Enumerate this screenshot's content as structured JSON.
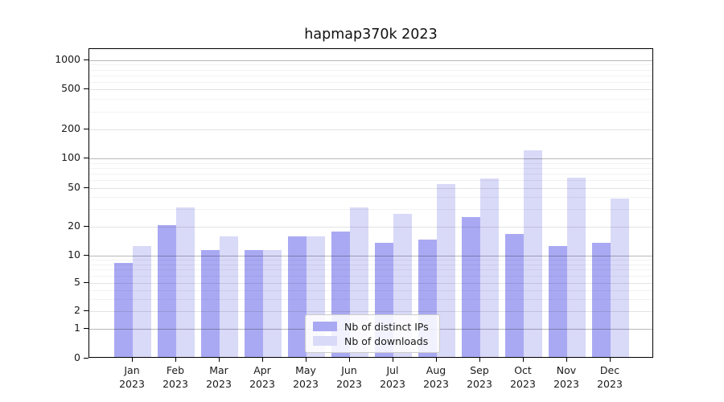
{
  "title": "hapmap370k 2023",
  "legend": {
    "items": [
      {
        "label": "Nb of distinct IPs",
        "color": "#a9a9f3"
      },
      {
        "label": "Nb of downloads",
        "color": "#d9d9f8"
      }
    ],
    "position": "lower center"
  },
  "y_axis": {
    "tick_labels": [
      "0",
      "1",
      "2",
      "5",
      "10",
      "20",
      "50",
      "100",
      "200",
      "500",
      "1000"
    ]
  },
  "x_axis": {
    "months": [
      "Jan",
      "Feb",
      "Mar",
      "Apr",
      "May",
      "Jun",
      "Jul",
      "Aug",
      "Sep",
      "Oct",
      "Nov",
      "Dec"
    ],
    "year": "2023"
  },
  "chart_data": {
    "type": "bar",
    "title": "hapmap370k 2023",
    "categories": [
      "Jan 2023",
      "Feb 2023",
      "Mar 2023",
      "Apr 2023",
      "May 2023",
      "Jun 2023",
      "Jul 2023",
      "Aug 2023",
      "Sep 2023",
      "Oct 2023",
      "Nov 2023",
      "Dec 2023"
    ],
    "series": [
      {
        "name": "Nb of distinct IPs",
        "color": "#a9a9f3",
        "values": [
          8,
          20,
          11,
          11,
          15,
          17,
          13,
          14,
          24,
          16,
          12,
          13
        ]
      },
      {
        "name": "Nb of downloads",
        "color": "#d9d9f8",
        "values": [
          12,
          30,
          15,
          11,
          15,
          30,
          26,
          52,
          60,
          117,
          61,
          37
        ]
      }
    ],
    "yscale": "symlog",
    "yticks": [
      0,
      1,
      2,
      5,
      10,
      20,
      50,
      100,
      200,
      500,
      1000
    ],
    "yminorticks": [
      3,
      4,
      6,
      7,
      8,
      9,
      30,
      40,
      60,
      70,
      80,
      90,
      300,
      400,
      600,
      700,
      800,
      900
    ],
    "ylim": [
      0,
      1400
    ],
    "grid": true,
    "legend_position": "lower center",
    "background": "#ffffff"
  }
}
